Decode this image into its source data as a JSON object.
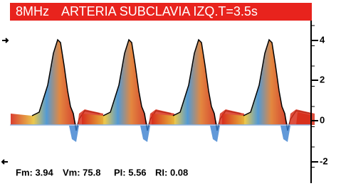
{
  "header": {
    "freq": "8MHz",
    "title": "ARTERIA SUBCLAVIA IZQ.T=3.5s"
  },
  "axis": {
    "ticks": [
      "4",
      "2",
      "0",
      "-2"
    ]
  },
  "footer": {
    "items": [
      "Fm: 3.94",
      "Vm: 75.8",
      "PI: 5.56",
      "RI: 0.08"
    ]
  }
}
